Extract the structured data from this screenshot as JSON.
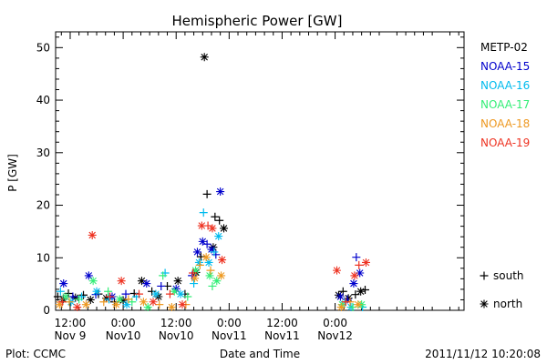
{
  "chart_data": {
    "type": "scatter",
    "title": "Hemispheric Power [GW]",
    "ylabel": "P [GW]",
    "xlabel": "Date and Time",
    "ylim": [
      0,
      53
    ],
    "yticks": [
      0,
      10,
      20,
      30,
      40,
      50
    ],
    "xlim_hours": [
      -3.3,
      89.2
    ],
    "x_ticks": [
      {
        "hour": 0,
        "line1": "12:00",
        "line2": "Nov 9"
      },
      {
        "hour": 12,
        "line1": "0:00",
        "line2": "Nov10"
      },
      {
        "hour": 24,
        "line1": "12:00",
        "line2": "Nov10"
      },
      {
        "hour": 36,
        "line1": "0:00",
        "line2": "Nov11"
      },
      {
        "hour": 48,
        "line1": "12:00",
        "line2": "Nov11"
      },
      {
        "hour": 60,
        "line1": "0:00",
        "line2": "Nov12"
      }
    ],
    "grid": false,
    "legend_position": "right",
    "series": [
      {
        "name": "METP-02",
        "color": "#000000",
        "points": [
          {
            "x": -2.8,
            "y": 2.6,
            "m": "+"
          },
          {
            "x": -1.6,
            "y": 2.1,
            "m": "*"
          },
          {
            "x": -0.4,
            "y": 3.2,
            "m": "+"
          },
          {
            "x": 1.2,
            "y": 2.4,
            "m": "*"
          },
          {
            "x": 3.0,
            "y": 2.9,
            "m": "+"
          },
          {
            "x": 4.6,
            "y": 2.0,
            "m": "*"
          },
          {
            "x": 6.4,
            "y": 3.1,
            "m": "+"
          },
          {
            "x": 8.2,
            "y": 2.3,
            "m": "*"
          },
          {
            "x": 10.0,
            "y": 1.6,
            "m": "+"
          },
          {
            "x": 12.0,
            "y": 1.9,
            "m": "*"
          },
          {
            "x": 14.5,
            "y": 3.2,
            "m": "+"
          },
          {
            "x": 16.2,
            "y": 5.6,
            "m": "*"
          },
          {
            "x": 18.5,
            "y": 3.6,
            "m": "+"
          },
          {
            "x": 20.0,
            "y": 2.6,
            "m": "*"
          },
          {
            "x": 22.0,
            "y": 4.6,
            "m": "+"
          },
          {
            "x": 24.4,
            "y": 5.6,
            "m": "*"
          },
          {
            "x": 26.0,
            "y": 3.1,
            "m": "+"
          },
          {
            "x": 28.5,
            "y": 7.2,
            "m": "*"
          },
          {
            "x": 29.6,
            "y": 10.2,
            "m": "+"
          },
          {
            "x": 30.4,
            "y": 48.2,
            "m": "*"
          },
          {
            "x": 31.0,
            "y": 22.1,
            "m": "+"
          },
          {
            "x": 32.4,
            "y": 12.0,
            "m": "*"
          },
          {
            "x": 32.8,
            "y": 17.8,
            "m": "+"
          },
          {
            "x": 33.8,
            "y": 17.1,
            "m": "+"
          },
          {
            "x": 34.8,
            "y": 15.6,
            "m": "*"
          },
          {
            "x": 60.8,
            "y": 2.9,
            "m": "*"
          },
          {
            "x": 61.8,
            "y": 3.6,
            "m": "+"
          },
          {
            "x": 63.0,
            "y": 2.3,
            "m": "*"
          },
          {
            "x": 64.6,
            "y": 3.0,
            "m": "+"
          },
          {
            "x": 65.8,
            "y": 3.6,
            "m": "*"
          },
          {
            "x": 66.8,
            "y": 3.9,
            "m": "+"
          }
        ]
      },
      {
        "name": "NOAA-15",
        "color": "#0000cc",
        "points": [
          {
            "x": -1.5,
            "y": 5.1,
            "m": "*"
          },
          {
            "x": 0.6,
            "y": 2.6,
            "m": "+"
          },
          {
            "x": 4.2,
            "y": 6.6,
            "m": "*"
          },
          {
            "x": 5.8,
            "y": 3.0,
            "m": "+"
          },
          {
            "x": 9.5,
            "y": 2.6,
            "m": "*"
          },
          {
            "x": 12.6,
            "y": 3.1,
            "m": "+"
          },
          {
            "x": 17.3,
            "y": 5.1,
            "m": "*"
          },
          {
            "x": 20.6,
            "y": 4.6,
            "m": "+"
          },
          {
            "x": 24.0,
            "y": 4.1,
            "m": "*"
          },
          {
            "x": 27.6,
            "y": 6.6,
            "m": "+"
          },
          {
            "x": 28.8,
            "y": 11.1,
            "m": "*"
          },
          {
            "x": 30.0,
            "y": 13.1,
            "m": "*"
          },
          {
            "x": 31.0,
            "y": 12.6,
            "m": "+"
          },
          {
            "x": 32.0,
            "y": 11.6,
            "m": "*"
          },
          {
            "x": 33.0,
            "y": 10.6,
            "m": "+"
          },
          {
            "x": 34.0,
            "y": 22.6,
            "m": "*"
          },
          {
            "x": 61.2,
            "y": 2.6,
            "m": "*"
          },
          {
            "x": 62.8,
            "y": 2.1,
            "m": "+"
          },
          {
            "x": 64.2,
            "y": 5.1,
            "m": "*"
          },
          {
            "x": 64.8,
            "y": 10.1,
            "m": "+"
          },
          {
            "x": 65.6,
            "y": 7.1,
            "m": "*"
          }
        ]
      },
      {
        "name": "NOAA-16",
        "color": "#00bbee",
        "points": [
          {
            "x": -2.2,
            "y": 3.6,
            "m": "+"
          },
          {
            "x": 0.2,
            "y": 1.6,
            "m": "*"
          },
          {
            "x": 2.6,
            "y": 2.6,
            "m": "+"
          },
          {
            "x": 6.0,
            "y": 3.6,
            "m": "*"
          },
          {
            "x": 8.8,
            "y": 2.1,
            "m": "+"
          },
          {
            "x": 12.8,
            "y": 1.1,
            "m": "*"
          },
          {
            "x": 15.0,
            "y": 2.6,
            "m": "+"
          },
          {
            "x": 19.4,
            "y": 3.1,
            "m": "*"
          },
          {
            "x": 21.5,
            "y": 7.1,
            "m": "+"
          },
          {
            "x": 25.0,
            "y": 3.1,
            "m": "*"
          },
          {
            "x": 28.0,
            "y": 5.1,
            "m": "+"
          },
          {
            "x": 29.2,
            "y": 9.1,
            "m": "*"
          },
          {
            "x": 30.2,
            "y": 18.6,
            "m": "+"
          },
          {
            "x": 31.4,
            "y": 9.1,
            "m": "*"
          },
          {
            "x": 32.6,
            "y": 11.1,
            "m": "+"
          },
          {
            "x": 33.6,
            "y": 14.1,
            "m": "*"
          },
          {
            "x": 62.2,
            "y": 1.6,
            "m": "+"
          },
          {
            "x": 63.6,
            "y": 0.6,
            "m": "*"
          },
          {
            "x": 66.2,
            "y": 0.6,
            "m": "+"
          }
        ]
      },
      {
        "name": "NOAA-17",
        "color": "#33ee77",
        "points": [
          {
            "x": -1.0,
            "y": 2.6,
            "m": "*"
          },
          {
            "x": 2.0,
            "y": 2.1,
            "m": "+"
          },
          {
            "x": 5.2,
            "y": 5.6,
            "m": "*"
          },
          {
            "x": 8.6,
            "y": 3.6,
            "m": "+"
          },
          {
            "x": 11.2,
            "y": 2.1,
            "m": "*"
          },
          {
            "x": 14.0,
            "y": 1.6,
            "m": "+"
          },
          {
            "x": 17.6,
            "y": 0.6,
            "m": "*"
          },
          {
            "x": 21.0,
            "y": 6.6,
            "m": "+"
          },
          {
            "x": 23.6,
            "y": 3.6,
            "m": "*"
          },
          {
            "x": 26.6,
            "y": 2.6,
            "m": "+"
          },
          {
            "x": 28.4,
            "y": 7.6,
            "m": "*"
          },
          {
            "x": 31.6,
            "y": 6.6,
            "m": "*"
          },
          {
            "x": 32.2,
            "y": 4.6,
            "m": "+"
          },
          {
            "x": 33.2,
            "y": 5.6,
            "m": "*"
          },
          {
            "x": 61.6,
            "y": 1.1,
            "m": "*"
          },
          {
            "x": 64.0,
            "y": 0.6,
            "m": "+"
          },
          {
            "x": 66.0,
            "y": 1.1,
            "m": "*"
          }
        ]
      },
      {
        "name": "NOAA-18",
        "color": "#ee9922",
        "points": [
          {
            "x": -2.4,
            "y": 1.1,
            "m": "*"
          },
          {
            "x": -0.2,
            "y": 1.6,
            "m": "+"
          },
          {
            "x": 3.6,
            "y": 1.1,
            "m": "*"
          },
          {
            "x": 7.6,
            "y": 1.6,
            "m": "+"
          },
          {
            "x": 10.4,
            "y": 1.1,
            "m": "*"
          },
          {
            "x": 13.2,
            "y": 2.1,
            "m": "+"
          },
          {
            "x": 16.6,
            "y": 1.6,
            "m": "*"
          },
          {
            "x": 20.2,
            "y": 1.1,
            "m": "+"
          },
          {
            "x": 23.0,
            "y": 0.6,
            "m": "*"
          },
          {
            "x": 26.2,
            "y": 1.1,
            "m": "+"
          },
          {
            "x": 28.2,
            "y": 6.1,
            "m": "*"
          },
          {
            "x": 29.4,
            "y": 8.6,
            "m": "+"
          },
          {
            "x": 30.8,
            "y": 10.1,
            "m": "*"
          },
          {
            "x": 31.8,
            "y": 7.6,
            "m": "+"
          },
          {
            "x": 34.2,
            "y": 6.6,
            "m": "*"
          },
          {
            "x": 61.4,
            "y": 0.6,
            "m": "*"
          },
          {
            "x": 63.4,
            "y": 1.6,
            "m": "+"
          },
          {
            "x": 65.2,
            "y": 1.1,
            "m": "*"
          }
        ]
      },
      {
        "name": "NOAA-19",
        "color": "#ee3322",
        "points": [
          {
            "x": -1.8,
            "y": 1.6,
            "m": "+"
          },
          {
            "x": 1.6,
            "y": 0.6,
            "m": "*"
          },
          {
            "x": 5.0,
            "y": 14.3,
            "m": "*"
          },
          {
            "x": 9.0,
            "y": 2.6,
            "m": "+"
          },
          {
            "x": 11.6,
            "y": 5.6,
            "m": "*"
          },
          {
            "x": 15.6,
            "y": 3.1,
            "m": "+"
          },
          {
            "x": 18.8,
            "y": 1.6,
            "m": "*"
          },
          {
            "x": 22.6,
            "y": 3.1,
            "m": "+"
          },
          {
            "x": 25.4,
            "y": 1.1,
            "m": "*"
          },
          {
            "x": 27.8,
            "y": 7.1,
            "m": "+"
          },
          {
            "x": 29.8,
            "y": 16.1,
            "m": "*"
          },
          {
            "x": 31.2,
            "y": 16.1,
            "m": "+"
          },
          {
            "x": 32.2,
            "y": 15.6,
            "m": "*"
          },
          {
            "x": 34.4,
            "y": 9.6,
            "m": "*"
          },
          {
            "x": 60.4,
            "y": 7.6,
            "m": "*"
          },
          {
            "x": 62.4,
            "y": 1.6,
            "m": "+"
          },
          {
            "x": 64.4,
            "y": 6.6,
            "m": "*"
          },
          {
            "x": 65.4,
            "y": 8.6,
            "m": "+"
          },
          {
            "x": 67.0,
            "y": 9.1,
            "m": "*"
          }
        ]
      }
    ],
    "marker_legend": [
      {
        "symbol": "+",
        "label": "south"
      },
      {
        "symbol": "*",
        "label": "north"
      }
    ]
  },
  "footer": {
    "left": "Plot: CCMC",
    "right": "2011/11/12 10:20:08"
  }
}
